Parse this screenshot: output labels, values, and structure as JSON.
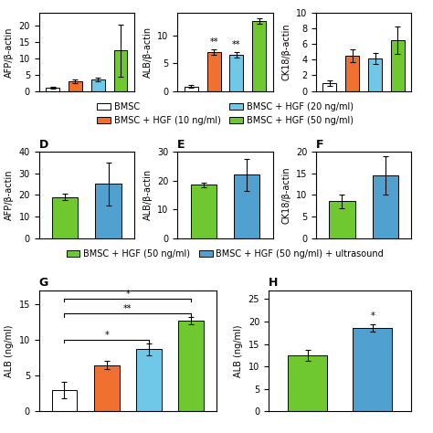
{
  "chart_data": [
    {
      "type": "bar",
      "y_label": "AFP/β-actin",
      "categories": [
        null
      ],
      "tick_labels": "y",
      "ylim": [
        0,
        24
      ],
      "yticks": [
        0,
        5,
        10,
        15,
        20
      ],
      "series": [
        {
          "name": "BMSC",
          "color": "#FFFFFF",
          "values": [
            1.0
          ],
          "errors": [
            0.3
          ]
        },
        {
          "name": "BMSC + HGF (10 ng/ml)",
          "color": "#F07030",
          "values": [
            3.0
          ],
          "errors": [
            0.5
          ]
        },
        {
          "name": "BMSC + HGF (20 ng/ml)",
          "color": "#70C8E8",
          "values": [
            3.5
          ],
          "errors": [
            0.6
          ]
        },
        {
          "name": "BMSC + HGF (50 ng/ml)",
          "color": "#70C830",
          "values": [
            12.5
          ],
          "errors": [
            8.0
          ]
        }
      ]
    },
    {
      "type": "bar",
      "y_label": "ALB/β-actin",
      "categories": [
        null
      ],
      "tick_labels": "y",
      "ylim": [
        0,
        14
      ],
      "yticks": [
        0,
        5,
        10
      ],
      "legend": "upper center",
      "series": [
        {
          "name": "BMSC",
          "color": "#FFFFFF",
          "values": [
            0.8
          ],
          "errors": [
            0.2
          ]
        },
        {
          "name": "BMSC + HGF (10 ng/ml)",
          "color": "#F07030",
          "values": [
            7.0
          ],
          "errors": [
            0.5
          ]
        },
        {
          "name": "BMSC + HGF (20 ng/ml)",
          "color": "#70C8E8",
          "values": [
            6.5
          ],
          "errors": [
            0.5
          ]
        },
        {
          "name": "BMSC + HGF (50 ng/ml)",
          "color": "#70C830",
          "values": [
            12.5
          ],
          "errors": [
            0.5
          ]
        }
      ],
      "annotations": [
        {
          "text": "**",
          "series": 1
        },
        {
          "text": "**",
          "series": 2
        }
      ]
    },
    {
      "type": "bar",
      "y_label": "CK18/β-actin",
      "categories": [
        null
      ],
      "tick_labels": "y",
      "ylim": [
        0,
        10
      ],
      "yticks": [
        0,
        2,
        4,
        6,
        8,
        10
      ],
      "series": [
        {
          "name": "BMSC",
          "color": "#FFFFFF",
          "values": [
            1.0
          ],
          "errors": [
            0.3
          ]
        },
        {
          "name": "BMSC + HGF (10 ng/ml)",
          "color": "#F07030",
          "values": [
            4.5
          ],
          "errors": [
            0.8
          ]
        },
        {
          "name": "BMSC + HGF (20 ng/ml)",
          "color": "#70C8E8",
          "values": [
            4.2
          ],
          "errors": [
            0.7
          ]
        },
        {
          "name": "BMSC + HGF (50 ng/ml)",
          "color": "#70C830",
          "values": [
            6.5
          ],
          "errors": [
            1.8
          ]
        }
      ]
    },
    {
      "type": "bar",
      "title": "D",
      "y_label": "AFP/β-actin",
      "categories": [
        null
      ],
      "tick_labels": "y",
      "ylim": [
        0,
        40
      ],
      "yticks": [
        0,
        10,
        20,
        30,
        40
      ],
      "series": [
        {
          "name": "BMSC + HGF (50 ng/ml)",
          "color": "#70C830",
          "values": [
            19.0
          ],
          "errors": [
            1.5
          ]
        },
        {
          "name": "BMSC + HGF (50 ng/ml) + ultrasound",
          "color": "#50A0D0",
          "values": [
            25.0
          ],
          "errors": [
            10.0
          ]
        }
      ]
    },
    {
      "type": "bar",
      "title": "E",
      "y_label": "ALB/β-actin",
      "categories": [
        null
      ],
      "tick_labels": "y",
      "ylim": [
        0,
        30
      ],
      "yticks": [
        0,
        10,
        20,
        30
      ],
      "legend": "upper center",
      "series": [
        {
          "name": "BMSC + HGF (50 ng/ml)",
          "color": "#70C830",
          "values": [
            18.5
          ],
          "errors": [
            0.8
          ]
        },
        {
          "name": "BMSC + HGF (50 ng/ml) + ultrasound",
          "color": "#50A0D0",
          "values": [
            22.0
          ],
          "errors": [
            5.5
          ]
        }
      ]
    },
    {
      "type": "bar",
      "title": "F",
      "y_label": "CK18/β-actin",
      "categories": [
        null
      ],
      "tick_labels": "y",
      "ylim": [
        0,
        20
      ],
      "yticks": [
        0,
        5,
        10,
        15,
        20
      ],
      "series": [
        {
          "name": "BMSC + HGF (50 ng/ml)",
          "color": "#70C830",
          "values": [
            8.5
          ],
          "errors": [
            1.5
          ]
        },
        {
          "name": "BMSC + HGF (50 ng/ml) + ultrasound",
          "color": "#50A0D0",
          "values": [
            14.5
          ],
          "errors": [
            4.5
          ]
        }
      ]
    },
    {
      "type": "bar",
      "title": "G",
      "y_label": "ALB (ng/ml)",
      "categories": [
        null
      ],
      "tick_labels": "y",
      "ylim": [
        0,
        17
      ],
      "yticks": [
        0,
        5,
        10,
        15
      ],
      "series": [
        {
          "name": "BMSC",
          "color": "#FFFFFF",
          "values": [
            3.0
          ],
          "errors": [
            1.2
          ]
        },
        {
          "name": "BMSC + HGF (10 ng/ml)",
          "color": "#F07030",
          "values": [
            6.5
          ],
          "errors": [
            0.6
          ]
        },
        {
          "name": "BMSC + HGF (20 ng/ml)",
          "color": "#70C8E8",
          "values": [
            8.7
          ],
          "errors": [
            0.8
          ]
        },
        {
          "name": "BMSC + HGF (50 ng/ml)",
          "color": "#70C830",
          "values": [
            12.7
          ],
          "errors": [
            0.5
          ]
        }
      ],
      "annotations": [
        {
          "text": "*",
          "from": 0,
          "to": 2
        },
        {
          "text": "**",
          "from": 0,
          "to": 3
        },
        {
          "text": "*",
          "from": 0,
          "to": 3
        }
      ]
    },
    {
      "type": "bar",
      "title": "H",
      "y_label": "ALB (ng/ml)",
      "categories": [
        null
      ],
      "tick_labels": "y",
      "ylim": [
        0,
        27
      ],
      "yticks": [
        0,
        5,
        10,
        15,
        20,
        25
      ],
      "series": [
        {
          "name": "BMSC + HGF (50 ng/ml)",
          "color": "#70C830",
          "values": [
            12.5
          ],
          "errors": [
            1.2
          ]
        },
        {
          "name": "BMSC + HGF (50 ng/ml) + ultrasound",
          "color": "#50A0D0",
          "values": [
            18.5
          ],
          "errors": [
            0.8
          ]
        }
      ],
      "annotations": [
        {
          "text": "*",
          "series": 1
        }
      ]
    }
  ]
}
